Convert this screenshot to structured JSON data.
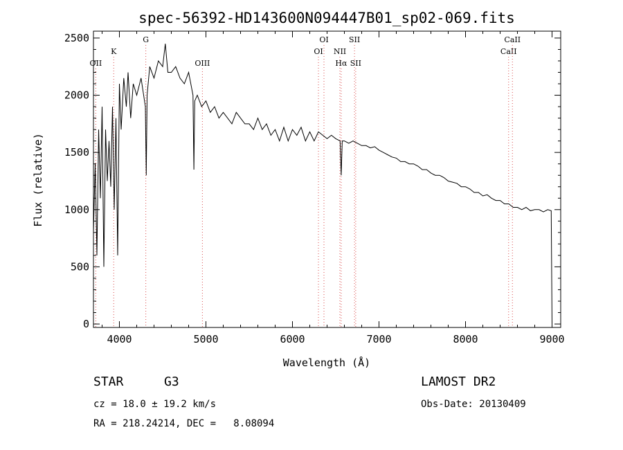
{
  "chart_data": {
    "type": "line",
    "title": "spec-56392-HD143600N094447B01_sp02-069.fits",
    "xlabel": "Wavelength (Å)",
    "ylabel": "Flux (relative)",
    "xlim": [
      3700,
      9100
    ],
    "ylim": [
      -30,
      2560
    ],
    "xticks": [
      4000,
      5000,
      6000,
      7000,
      8000,
      9000
    ],
    "yticks": [
      0,
      500,
      1000,
      1500,
      2000,
      2500
    ],
    "series": [
      {
        "x": [
          3700,
          3720,
          3740,
          3760,
          3780,
          3800,
          3820,
          3840,
          3860,
          3880,
          3900,
          3920,
          3940,
          3960,
          3980,
          4000,
          4020,
          4050,
          4080,
          4100,
          4130,
          4160,
          4200,
          4250,
          4300,
          4310,
          4320,
          4350,
          4400,
          4450,
          4500,
          4530,
          4560,
          4600,
          4650,
          4700,
          4750,
          4800,
          4850,
          4861,
          4870,
          4900,
          4950,
          5000,
          5050,
          5100,
          5150,
          5200,
          5250,
          5300,
          5350,
          5400,
          5450,
          5500,
          5550,
          5600,
          5650,
          5700,
          5750,
          5800,
          5850,
          5900,
          5950,
          6000,
          6050,
          6100,
          6150,
          6200,
          6250,
          6300,
          6350,
          6400,
          6450,
          6500,
          6550,
          6563,
          6575,
          6600,
          6650,
          6700,
          6750,
          6800,
          6850,
          6900,
          6950,
          7000,
          7050,
          7100,
          7150,
          7200,
          7250,
          7300,
          7350,
          7400,
          7450,
          7500,
          7550,
          7600,
          7650,
          7700,
          7750,
          7800,
          7850,
          7900,
          7950,
          8000,
          8050,
          8100,
          8150,
          8200,
          8250,
          8300,
          8350,
          8400,
          8450,
          8500,
          8550,
          8600,
          8650,
          8700,
          8750,
          8800,
          8850,
          8900,
          8950,
          8990,
          9000
        ],
        "y": [
          800,
          1400,
          600,
          1700,
          1100,
          1900,
          500,
          1700,
          1250,
          1600,
          1200,
          1900,
          1000,
          1800,
          600,
          2100,
          1700,
          2150,
          1900,
          2200,
          1800,
          2100,
          2000,
          2150,
          1900,
          1300,
          2000,
          2250,
          2150,
          2300,
          2250,
          2450,
          2200,
          2200,
          2250,
          2150,
          2100,
          2200,
          2000,
          1350,
          1950,
          2000,
          1900,
          1950,
          1850,
          1900,
          1800,
          1850,
          1800,
          1750,
          1850,
          1800,
          1750,
          1750,
          1700,
          1800,
          1700,
          1750,
          1650,
          1700,
          1600,
          1720,
          1600,
          1700,
          1650,
          1720,
          1600,
          1680,
          1600,
          1680,
          1650,
          1620,
          1650,
          1620,
          1600,
          1300,
          1600,
          1600,
          1580,
          1600,
          1580,
          1560,
          1560,
          1540,
          1550,
          1520,
          1500,
          1480,
          1460,
          1450,
          1420,
          1420,
          1400,
          1400,
          1380,
          1350,
          1350,
          1320,
          1300,
          1300,
          1280,
          1250,
          1240,
          1230,
          1200,
          1200,
          1180,
          1150,
          1150,
          1120,
          1130,
          1100,
          1080,
          1080,
          1050,
          1050,
          1020,
          1020,
          1000,
          1020,
          990,
          1000,
          1000,
          980,
          1000,
          990,
          0
        ]
      }
    ],
    "line_markers": [
      {
        "label": "OII",
        "x": 3727,
        "row": 3
      },
      {
        "label": "K",
        "x": 3934,
        "row": 2
      },
      {
        "label": "G",
        "x": 4305,
        "row": 1
      },
      {
        "label": "OIII",
        "x": 4959,
        "row": 3
      },
      {
        "label": "OI",
        "x": 6300,
        "row": 2
      },
      {
        "label": "OI",
        "x": 6364,
        "row": 1
      },
      {
        "label": "NII",
        "x": 6548,
        "row": 2
      },
      {
        "label": "Hα",
        "x": 6563,
        "row": 3
      },
      {
        "label": "SII",
        "x": 6717,
        "row": 1
      },
      {
        "label": "SII",
        "x": 6731,
        "row": 3
      },
      {
        "label": "CaII",
        "x": 8498,
        "row": 2
      },
      {
        "label": "CaII",
        "x": 8542,
        "row": 1
      }
    ],
    "grid": false
  },
  "info": {
    "object_class": "STAR",
    "subclass": "G3",
    "survey": "LAMOST DR2",
    "redshift": "cz = 18.0 ± 19.2 km/s",
    "obs_date": "Obs-Date: 20130409",
    "coords": "RA = 218.24214, DEC =   8.08094"
  }
}
